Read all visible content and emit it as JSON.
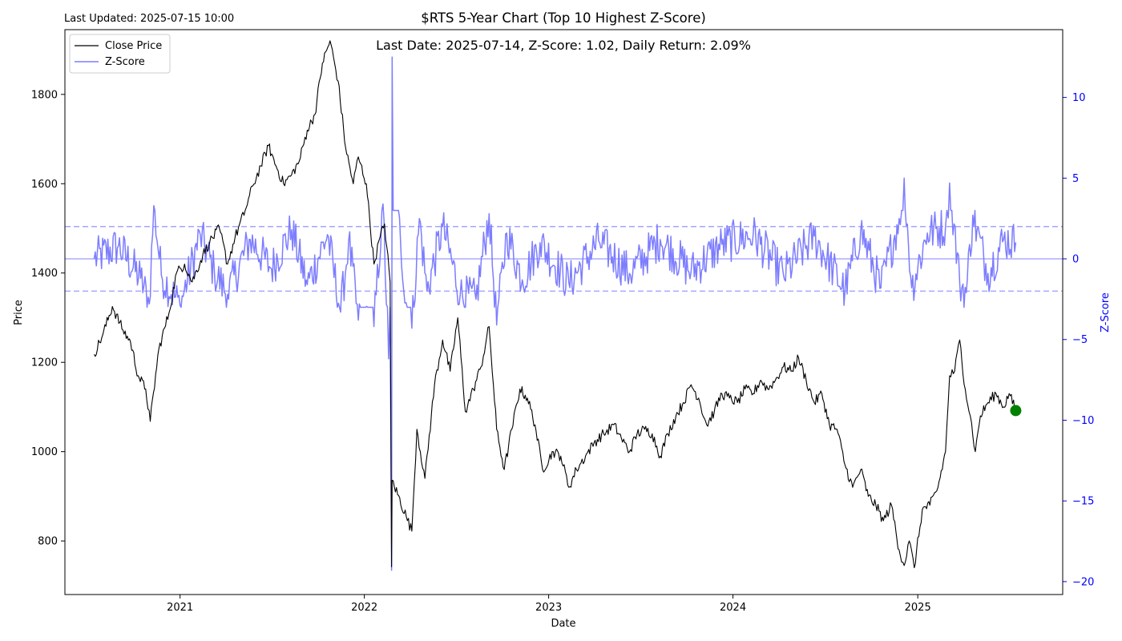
{
  "last_updated": "Last Updated: 2025-07-15 10:00",
  "title": "$RTS 5-Year Chart (Top 10 Highest Z-Score)",
  "annotation": "Last Date: 2025-07-14, Z-Score: 1.02, Daily Return: 2.09%",
  "legend": {
    "close_label": "Close Price",
    "z_label": "Z-Score",
    "placement": "upper-left"
  },
  "colors": {
    "price": "#000000",
    "zscore": "#7d7dff",
    "last_marker": "#008000",
    "z_axis": "#0000ff"
  },
  "chart_data": {
    "type": "line",
    "title": "$RTS 5-Year Chart (Top 10 Highest Z-Score)",
    "xlabel": "Date",
    "ylabel": "Price",
    "y2label": "Z-Score",
    "x_ticks": [
      "2021",
      "2022",
      "2023",
      "2024",
      "2025"
    ],
    "y_ticks": [
      800,
      1000,
      1200,
      1400,
      1600,
      1800
    ],
    "y2_ticks": [
      10,
      5,
      0,
      -5,
      -10,
      -15,
      -20
    ],
    "xlim": [
      "2020-05-18",
      "2025-10-15"
    ],
    "ylim": [
      680,
      1945
    ],
    "y2lim": [
      -20.8,
      14.2
    ],
    "z_reference_lines": [
      2,
      0,
      -2
    ],
    "grid": false,
    "series": [
      {
        "name": "Close Price",
        "axis": "left",
        "points": [
          [
            "2020-07-15",
            1218
          ],
          [
            "2020-08-01",
            1262
          ],
          [
            "2020-08-20",
            1325
          ],
          [
            "2020-09-10",
            1272
          ],
          [
            "2020-09-25",
            1245
          ],
          [
            "2020-10-10",
            1170
          ],
          [
            "2020-10-25",
            1140
          ],
          [
            "2020-11-03",
            1068
          ],
          [
            "2020-11-20",
            1230
          ],
          [
            "2020-12-10",
            1310
          ],
          [
            "2020-12-25",
            1400
          ],
          [
            "2021-01-10",
            1420
          ],
          [
            "2021-01-25",
            1380
          ],
          [
            "2021-02-15",
            1440
          ],
          [
            "2021-03-01",
            1470
          ],
          [
            "2021-03-20",
            1500
          ],
          [
            "2021-04-05",
            1420
          ],
          [
            "2021-04-20",
            1480
          ],
          [
            "2021-05-10",
            1540
          ],
          [
            "2021-05-25",
            1595
          ],
          [
            "2021-06-10",
            1640
          ],
          [
            "2021-06-25",
            1685
          ],
          [
            "2021-07-10",
            1640
          ],
          [
            "2021-07-25",
            1600
          ],
          [
            "2021-08-10",
            1620
          ],
          [
            "2021-08-25",
            1650
          ],
          [
            "2021-09-10",
            1720
          ],
          [
            "2021-09-25",
            1755
          ],
          [
            "2021-10-10",
            1870
          ],
          [
            "2021-10-25",
            1920
          ],
          [
            "2021-11-10",
            1830
          ],
          [
            "2021-11-25",
            1680
          ],
          [
            "2021-12-10",
            1600
          ],
          [
            "2021-12-20",
            1660
          ],
          [
            "2022-01-05",
            1600
          ],
          [
            "2022-01-20",
            1420
          ],
          [
            "2022-02-01",
            1480
          ],
          [
            "2022-02-10",
            1510
          ],
          [
            "2022-02-21",
            1380
          ],
          [
            "2022-02-24",
            742
          ],
          [
            "2022-02-25",
            936
          ],
          [
            "2022-03-25",
            855
          ],
          [
            "2022-04-05",
            822
          ],
          [
            "2022-04-15",
            1050
          ],
          [
            "2022-05-01",
            940
          ],
          [
            "2022-05-20",
            1150
          ],
          [
            "2022-06-05",
            1250
          ],
          [
            "2022-06-20",
            1180
          ],
          [
            "2022-07-05",
            1300
          ],
          [
            "2022-07-20",
            1090
          ],
          [
            "2022-08-05",
            1140
          ],
          [
            "2022-08-20",
            1190
          ],
          [
            "2022-09-05",
            1280
          ],
          [
            "2022-09-20",
            1050
          ],
          [
            "2022-10-05",
            960
          ],
          [
            "2022-10-20",
            1050
          ],
          [
            "2022-11-05",
            1140
          ],
          [
            "2022-11-20",
            1120
          ],
          [
            "2022-12-05",
            1060
          ],
          [
            "2022-12-20",
            960
          ],
          [
            "2023-01-10",
            1000
          ],
          [
            "2023-01-25",
            990
          ],
          [
            "2023-02-10",
            920
          ],
          [
            "2023-02-25",
            960
          ],
          [
            "2023-03-15",
            990
          ],
          [
            "2023-04-01",
            1020
          ],
          [
            "2023-04-20",
            1040
          ],
          [
            "2023-05-10",
            1060
          ],
          [
            "2023-05-25",
            1030
          ],
          [
            "2023-06-10",
            1000
          ],
          [
            "2023-06-25",
            1040
          ],
          [
            "2023-07-10",
            1050
          ],
          [
            "2023-07-25",
            1040
          ],
          [
            "2023-08-10",
            990
          ],
          [
            "2023-08-25",
            1040
          ],
          [
            "2023-09-10",
            1080
          ],
          [
            "2023-09-25",
            1110
          ],
          [
            "2023-10-10",
            1150
          ],
          [
            "2023-10-25",
            1120
          ],
          [
            "2023-11-10",
            1060
          ],
          [
            "2023-11-25",
            1090
          ],
          [
            "2023-12-10",
            1130
          ],
          [
            "2023-12-25",
            1120
          ],
          [
            "2024-01-10",
            1110
          ],
          [
            "2024-01-25",
            1140
          ],
          [
            "2024-02-10",
            1130
          ],
          [
            "2024-02-25",
            1160
          ],
          [
            "2024-03-10",
            1140
          ],
          [
            "2024-03-25",
            1160
          ],
          [
            "2024-04-10",
            1190
          ],
          [
            "2024-04-25",
            1180
          ],
          [
            "2024-05-10",
            1210
          ],
          [
            "2024-05-25",
            1160
          ],
          [
            "2024-06-10",
            1110
          ],
          [
            "2024-06-25",
            1130
          ],
          [
            "2024-07-10",
            1060
          ],
          [
            "2024-07-25",
            1050
          ],
          [
            "2024-08-10",
            970
          ],
          [
            "2024-08-25",
            920
          ],
          [
            "2024-09-10",
            960
          ],
          [
            "2024-09-25",
            900
          ],
          [
            "2024-10-10",
            880
          ],
          [
            "2024-10-25",
            845
          ],
          [
            "2024-11-10",
            880
          ],
          [
            "2024-11-25",
            780
          ],
          [
            "2024-12-05",
            745
          ],
          [
            "2024-12-15",
            800
          ],
          [
            "2024-12-25",
            740
          ],
          [
            "2025-01-10",
            870
          ],
          [
            "2025-01-25",
            880
          ],
          [
            "2025-02-10",
            920
          ],
          [
            "2025-02-25",
            1000
          ],
          [
            "2025-03-05",
            1170
          ],
          [
            "2025-03-15",
            1180
          ],
          [
            "2025-03-25",
            1250
          ],
          [
            "2025-04-05",
            1140
          ],
          [
            "2025-04-15",
            1080
          ],
          [
            "2025-04-25",
            1000
          ],
          [
            "2025-05-05",
            1080
          ],
          [
            "2025-05-20",
            1110
          ],
          [
            "2025-06-05",
            1130
          ],
          [
            "2025-06-20",
            1100
          ],
          [
            "2025-07-01",
            1130
          ],
          [
            "2025-07-14",
            1092
          ]
        ]
      },
      {
        "name": "Z-Score",
        "axis": "right",
        "points": [
          [
            "2020-07-15",
            0.0
          ],
          [
            "2020-09-01",
            0.8
          ],
          [
            "2020-10-15",
            -1.2
          ],
          [
            "2020-11-01",
            -2.8
          ],
          [
            "2020-11-10",
            3.3
          ],
          [
            "2020-11-25",
            -1.0
          ],
          [
            "2021-01-01",
            -2.9
          ],
          [
            "2021-02-10",
            1.5
          ],
          [
            "2021-03-10",
            -0.8
          ],
          [
            "2021-04-05",
            -2.2
          ],
          [
            "2021-05-20",
            1.2
          ],
          [
            "2021-07-01",
            -0.6
          ],
          [
            "2021-08-10",
            1.8
          ],
          [
            "2021-09-10",
            -1.6
          ],
          [
            "2021-10-20",
            1.5
          ],
          [
            "2021-11-15",
            -3.3
          ],
          [
            "2021-12-01",
            1.2
          ],
          [
            "2021-12-20",
            -3.8
          ],
          [
            "2022-01-20",
            -4.2
          ],
          [
            "2022-02-07",
            3.4
          ],
          [
            "2022-02-18",
            -6.2
          ],
          [
            "2022-02-24",
            -19.3
          ],
          [
            "2022-02-25",
            12.5
          ],
          [
            "2022-03-20",
            -2.0
          ],
          [
            "2022-04-05",
            -4.3
          ],
          [
            "2022-04-20",
            2.5
          ],
          [
            "2022-05-05",
            -2.0
          ],
          [
            "2022-06-05",
            2.0
          ],
          [
            "2022-07-10",
            -2.2
          ],
          [
            "2022-08-10",
            -2.5
          ],
          [
            "2022-09-05",
            2.8
          ],
          [
            "2022-09-20",
            -4.1
          ],
          [
            "2022-10-10",
            1.6
          ],
          [
            "2022-11-10",
            -1.3
          ],
          [
            "2022-12-15",
            1.0
          ],
          [
            "2023-02-10",
            -1.5
          ],
          [
            "2023-04-10",
            1.1
          ],
          [
            "2023-06-10",
            -0.9
          ],
          [
            "2023-08-10",
            1.2
          ],
          [
            "2023-10-10",
            -0.8
          ],
          [
            "2023-12-10",
            0.9
          ],
          [
            "2024-02-10",
            1.5
          ],
          [
            "2024-04-10",
            -1.0
          ],
          [
            "2024-06-10",
            1.4
          ],
          [
            "2024-08-10",
            -2.0
          ],
          [
            "2024-09-10",
            1.8
          ],
          [
            "2024-10-20",
            -1.8
          ],
          [
            "2024-11-25",
            2.5
          ],
          [
            "2024-12-05",
            5.0
          ],
          [
            "2024-12-20",
            -1.8
          ],
          [
            "2025-01-20",
            1.6
          ],
          [
            "2025-02-25",
            2.0
          ],
          [
            "2025-03-05",
            4.7
          ],
          [
            "2025-03-25",
            -1.5
          ],
          [
            "2025-04-07",
            -2.1
          ],
          [
            "2025-04-20",
            2.7
          ],
          [
            "2025-05-20",
            -0.9
          ],
          [
            "2025-06-20",
            1.2
          ],
          [
            "2025-07-14",
            1.02
          ]
        ]
      }
    ],
    "last_point": {
      "date": "2025-07-14",
      "price": 1092
    }
  }
}
